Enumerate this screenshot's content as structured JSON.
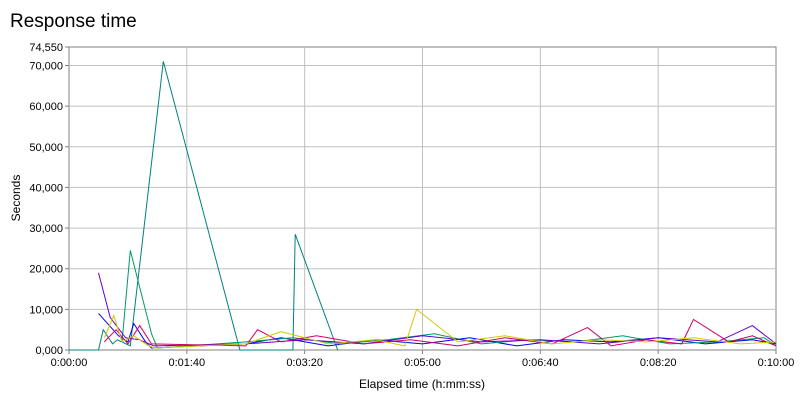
{
  "chart_data": {
    "type": "line",
    "title": "Response time",
    "xlabel": "Elapsed time (h:mm:ss)",
    "ylabel": "Seconds",
    "xlim": [
      "0:00:00",
      "0:10:00"
    ],
    "ylim": [
      0,
      74550
    ],
    "grid": true,
    "x_ticks": [
      "0:00:00",
      "0:01:40",
      "0:03:20",
      "0:05:00",
      "0:06:40",
      "0:08:20",
      "0:10:00"
    ],
    "y_ticks": [
      "0,000",
      "10,000",
      "20,000",
      "30,000",
      "40,000",
      "50,000",
      "60,000",
      "70,000",
      "74,550"
    ],
    "series": [
      {
        "color": "#008080",
        "x": [
          "0:00:00",
          "0:00:25",
          "0:00:29",
          "0:00:37",
          "0:00:41",
          "0:00:52",
          "0:01:20",
          "0:02:25",
          "0:03:10",
          "0:03:12",
          "0:03:48"
        ],
        "y": [
          0,
          0,
          5000,
          1500,
          2500,
          1000,
          71000,
          0,
          0,
          28500,
          0
        ]
      },
      {
        "color": "#0000ff",
        "x": [
          "0:00:25",
          "0:00:42",
          "0:00:50",
          "0:00:55",
          "0:01:05",
          "0:01:10",
          "0:02:30",
          "0:03:00",
          "0:03:40",
          "0:04:20",
          "0:05:00",
          "0:05:40",
          "0:06:20",
          "0:07:00",
          "0:07:40",
          "0:08:20",
          "0:09:00",
          "0:09:40",
          "0:10:00"
        ],
        "y": [
          9000,
          3500,
          2000,
          6500,
          2000,
          500,
          1500,
          3000,
          1000,
          2500,
          1500,
          3000,
          1000,
          2500,
          2000,
          3000,
          1500,
          2500,
          1500
        ]
      },
      {
        "color": "#009966",
        "x": [
          "0:00:45",
          "0:00:52",
          "0:01:10",
          "0:01:15",
          "0:02:30",
          "0:03:10",
          "0:03:50",
          "0:04:30",
          "0:05:10",
          "0:05:50",
          "0:06:30",
          "0:07:10",
          "0:07:50",
          "0:08:30",
          "0:09:10",
          "0:09:50",
          "0:10:00"
        ],
        "y": [
          2000,
          24500,
          4000,
          500,
          2000,
          3000,
          1500,
          2500,
          4000,
          1500,
          2500,
          2000,
          3500,
          1500,
          2000,
          3000,
          1000
        ]
      },
      {
        "color": "#6600cc",
        "x": [
          "0:00:25",
          "0:00:35",
          "0:00:48",
          "0:01:00",
          "0:01:12",
          "0:02:30",
          "0:03:20",
          "0:04:10",
          "0:05:00",
          "0:05:50",
          "0:06:40",
          "0:07:30",
          "0:08:20",
          "0:09:10",
          "0:09:40",
          "0:10:00"
        ],
        "y": [
          19000,
          8000,
          3000,
          2500,
          1000,
          1500,
          2500,
          1500,
          3500,
          2000,
          2500,
          1500,
          3000,
          2000,
          6000,
          1500
        ]
      },
      {
        "color": "#cc0066",
        "x": [
          "0:00:30",
          "0:00:40",
          "0:00:50",
          "0:01:00",
          "0:01:10",
          "0:02:30",
          "0:02:40",
          "0:03:00",
          "0:03:30",
          "0:04:10",
          "0:04:50",
          "0:05:30",
          "0:06:10",
          "0:06:50",
          "0:07:20",
          "0:07:40",
          "0:08:10",
          "0:08:40",
          "0:08:50",
          "0:09:20",
          "0:09:40",
          "0:10:00"
        ],
        "y": [
          2000,
          5000,
          1500,
          6000,
          1500,
          1000,
          5000,
          2000,
          3500,
          1500,
          2500,
          1000,
          3000,
          1500,
          5500,
          1000,
          2500,
          1500,
          7500,
          2000,
          3500,
          1000
        ]
      },
      {
        "color": "#cccc00",
        "x": [
          "0:00:30",
          "0:00:38",
          "0:00:45",
          "0:00:55",
          "0:01:05",
          "0:01:12",
          "0:02:30",
          "0:03:00",
          "0:03:40",
          "0:04:20",
          "0:04:45",
          "0:04:55",
          "0:05:30",
          "0:06:10",
          "0:06:50",
          "0:07:30",
          "0:08:10",
          "0:08:50",
          "0:09:30",
          "0:10:00"
        ],
        "y": [
          3000,
          8500,
          2000,
          3500,
          1500,
          500,
          1500,
          4500,
          1500,
          2500,
          1000,
          10000,
          2000,
          3500,
          1500,
          2500,
          2000,
          3000,
          1500,
          2000
        ]
      }
    ]
  }
}
